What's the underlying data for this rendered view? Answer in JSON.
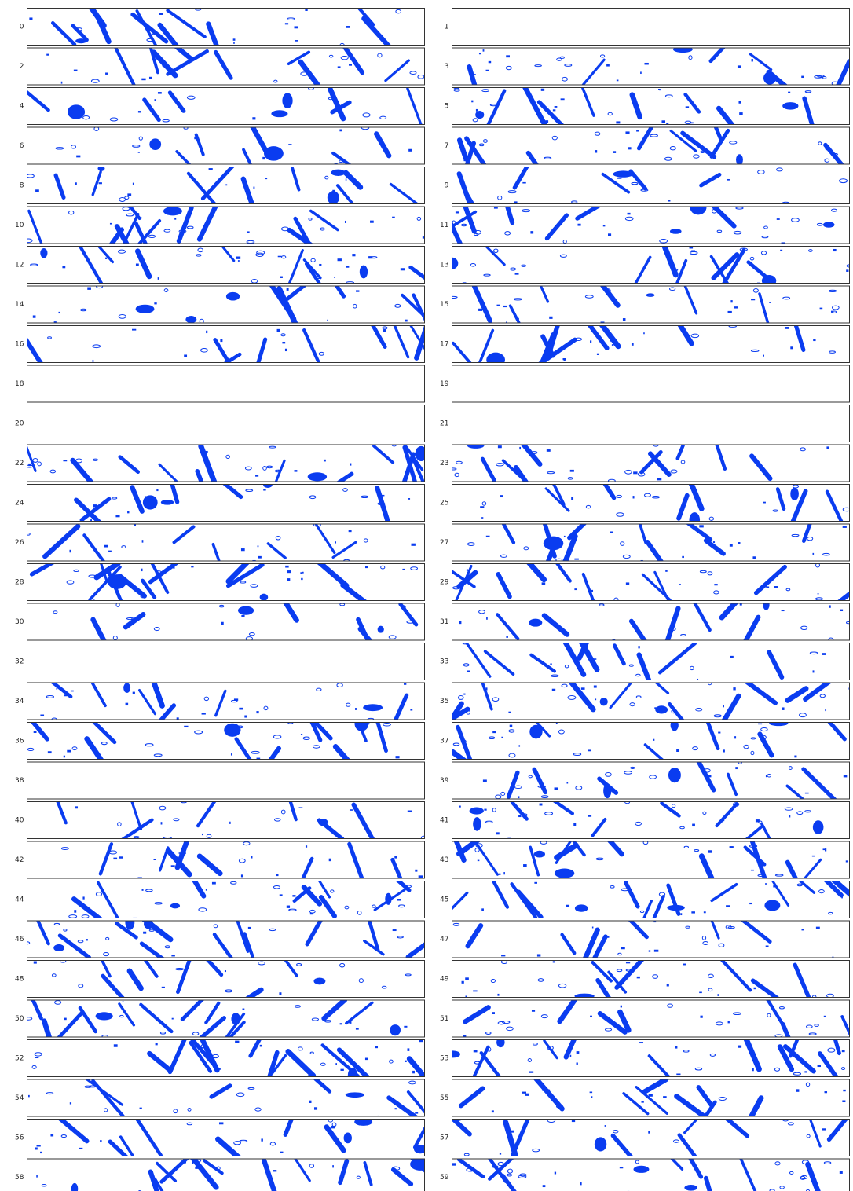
{
  "panels": [
    {
      "label": "0"
    },
    {
      "label": "1",
      "blank": true
    },
    {
      "label": "2"
    },
    {
      "label": "3"
    },
    {
      "label": "4"
    },
    {
      "label": "5"
    },
    {
      "label": "6"
    },
    {
      "label": "7"
    },
    {
      "label": "8"
    },
    {
      "label": "9"
    },
    {
      "label": "10"
    },
    {
      "label": "11"
    },
    {
      "label": "12"
    },
    {
      "label": "13"
    },
    {
      "label": "14"
    },
    {
      "label": "15"
    },
    {
      "label": "16"
    },
    {
      "label": "17"
    },
    {
      "label": "18",
      "blank": true
    },
    {
      "label": "19",
      "blank": true
    },
    {
      "label": "20",
      "blank": true
    },
    {
      "label": "21",
      "blank": true
    },
    {
      "label": "22"
    },
    {
      "label": "23"
    },
    {
      "label": "24"
    },
    {
      "label": "25"
    },
    {
      "label": "26"
    },
    {
      "label": "27"
    },
    {
      "label": "28"
    },
    {
      "label": "29"
    },
    {
      "label": "30"
    },
    {
      "label": "31"
    },
    {
      "label": "32",
      "blank": true
    },
    {
      "label": "33"
    },
    {
      "label": "34"
    },
    {
      "label": "35"
    },
    {
      "label": "36"
    },
    {
      "label": "37"
    },
    {
      "label": "38",
      "blank": true
    },
    {
      "label": "39"
    },
    {
      "label": "40"
    },
    {
      "label": "41"
    },
    {
      "label": "42"
    },
    {
      "label": "43"
    },
    {
      "label": "44"
    },
    {
      "label": "45"
    },
    {
      "label": "46"
    },
    {
      "label": "47"
    },
    {
      "label": "48"
    },
    {
      "label": "49"
    },
    {
      "label": "50"
    },
    {
      "label": "51"
    },
    {
      "label": "52"
    },
    {
      "label": "53"
    },
    {
      "label": "54"
    },
    {
      "label": "55"
    },
    {
      "label": "56"
    },
    {
      "label": "57"
    },
    {
      "label": "58"
    },
    {
      "label": "59"
    }
  ]
}
